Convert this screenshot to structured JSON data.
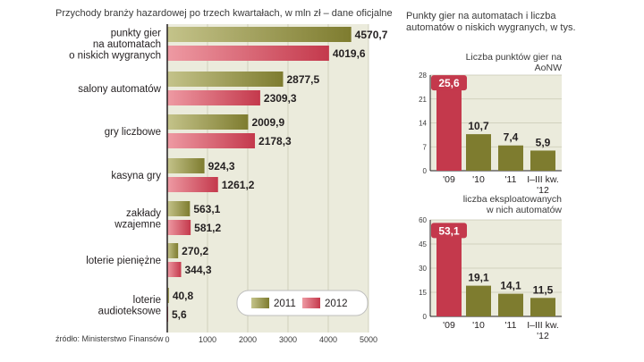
{
  "colors": {
    "s2011_light": "#c4c38a",
    "s2011_dark": "#7e7c2f",
    "s2012_light": "#ee9aa3",
    "s2012_dark": "#c4394c",
    "panel_bg": "#ebebdc",
    "grid": "#c9c9b4"
  },
  "chart_data": [
    {
      "type": "bar",
      "orientation": "horizontal",
      "title": "Przychody branży hazardowej po trzech kwartałach, w mln zł – dane oficjalne",
      "categories": [
        "punkty gier\nna automatach\no niskich wygranych",
        "salony automatów",
        "gry liczbowe",
        "kasyna gry",
        "zakłady\nwzajemne",
        "loterie pieniężne",
        "loterie\naudioteksowe"
      ],
      "series": [
        {
          "name": "2011",
          "values": [
            4570.7,
            2877.5,
            2009.9,
            924.3,
            563.1,
            270.2,
            40.8
          ],
          "labels": [
            "4570,7",
            "2877,5",
            "2009,9",
            "924,3",
            "563,1",
            "270,2",
            "40,8"
          ]
        },
        {
          "name": "2012",
          "values": [
            4019.6,
            2309.3,
            2178.3,
            1261.2,
            581.2,
            344.3,
            5.6
          ],
          "labels": [
            "4019,6",
            "2309,3",
            "2178,3",
            "1261,2",
            "581,2",
            "344,3",
            "5,6"
          ]
        }
      ],
      "xlim": [
        0,
        5000
      ],
      "xticks": [
        "0",
        "1000",
        "2000",
        "3000",
        "4000",
        "5000"
      ],
      "legend_position": "bottom-right",
      "source": "źródło: Ministerstwo Finansów"
    },
    {
      "type": "bar",
      "title": "Punkty gier na automatach i liczba automatów o niskich wygranych, w tys.",
      "subtitle": "Liczba punktów gier na AoNW",
      "categories": [
        "'09",
        "'10",
        "'11",
        "I–III kw. '12"
      ],
      "values": [
        25.6,
        10.7,
        7.4,
        5.9
      ],
      "labels": [
        "25,6",
        "10,7",
        "7,4",
        "5,9"
      ],
      "ylim": [
        0,
        28
      ],
      "yticks": [
        "0",
        "7",
        "14",
        "21",
        "28"
      ],
      "highlight_index": 0
    },
    {
      "type": "bar",
      "subtitle": "liczba eksploatowanych w nich automatów",
      "categories": [
        "'09",
        "'10",
        "'11",
        "I–III kw. '12"
      ],
      "values": [
        53.1,
        19.1,
        14.1,
        11.5
      ],
      "labels": [
        "53,1",
        "19,1",
        "14,1",
        "11,5"
      ],
      "ylim": [
        0,
        60
      ],
      "yticks": [
        "0",
        "15",
        "30",
        "45",
        "60"
      ],
      "highlight_index": 0
    }
  ]
}
